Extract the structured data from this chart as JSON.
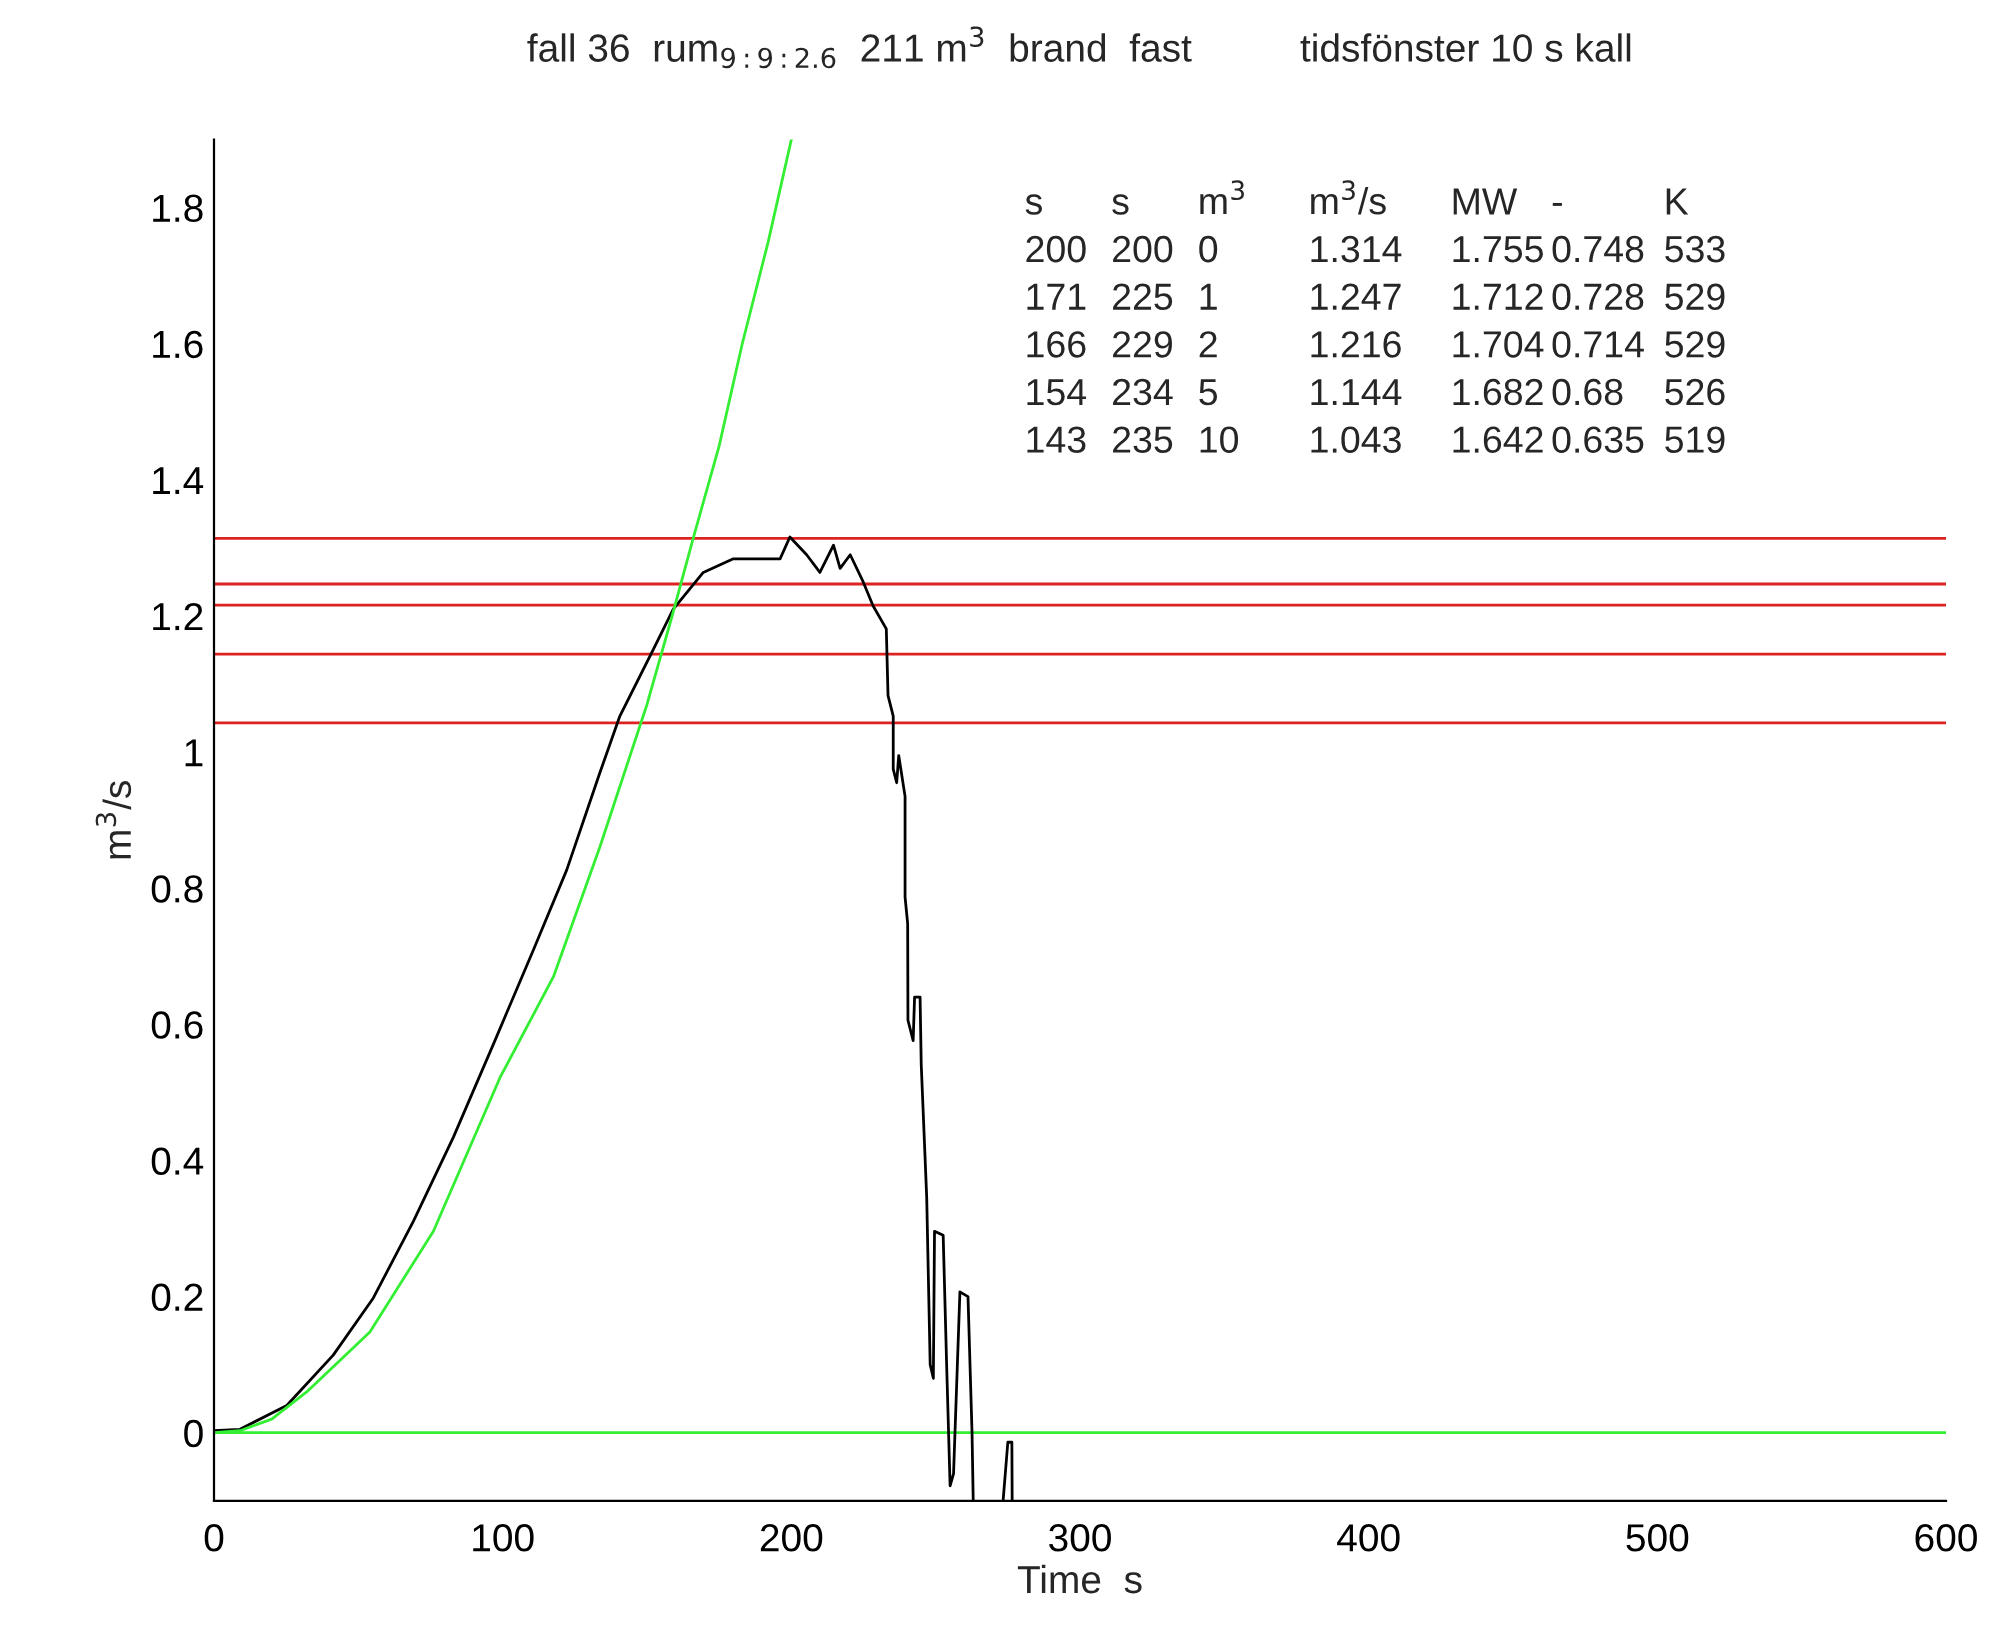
{
  "chart_data": {
    "type": "line",
    "title": "fall 36  rum$_{9:9:2.6}$  211 m$^{3}$  brand  fast          tidsfönster 10 s kall",
    "xlabel": "Time  s",
    "ylabel": "m$^{3}$/s",
    "xlim": [
      0,
      600
    ],
    "ylim": [
      -0.1,
      1.9
    ],
    "xticks": [
      0,
      100,
      200,
      300,
      400,
      500,
      600
    ],
    "yticks": [
      0,
      0.2,
      0.4,
      0.6,
      0.8,
      1,
      1.2,
      1.4,
      1.6,
      1.8
    ],
    "grid": false,
    "legend": false,
    "marker": "none",
    "line_style": "solid",
    "series": [
      {
        "color": "#000000",
        "x": [
          0,
          9,
          25.2,
          41.3,
          55.2,
          69.1,
          82.9,
          96.8,
          110.6,
          122.2,
          133.7,
          140.6,
          152.2,
          159.1,
          169.5,
          179.9,
          189.1,
          196.1,
          199.5,
          205.3,
          209.9,
          214.6,
          216.9,
          220.4,
          224.9,
          228.3,
          232.9,
          233.5,
          235.3,
          235.3,
          236.5,
          237.2,
          239.4,
          239.4,
          240.3,
          240.4,
          242.2,
          242.7,
          244.6,
          245.0,
          246.9,
          248.1,
          249.2,
          249.6,
          252.6,
          253.8,
          255.0,
          256.2,
          258.4,
          261.2,
          262.6,
          263.0,
          268,
          273.4,
          275.0,
          276.4,
          276.5
        ],
        "values": [
          0.003,
          0.005,
          0.04,
          0.114,
          0.198,
          0.311,
          0.434,
          0.571,
          0.709,
          0.827,
          0.97,
          1.053,
          1.151,
          1.21,
          1.264,
          1.284,
          1.284,
          1.284,
          1.316,
          1.29,
          1.264,
          1.304,
          1.27,
          1.29,
          1.25,
          1.215,
          1.181,
          1.083,
          1.053,
          0.975,
          0.955,
          0.995,
          0.935,
          0.787,
          0.748,
          0.606,
          0.576,
          0.64,
          0.64,
          0.541,
          0.345,
          0.1,
          0.08,
          0.296,
          0.29,
          0.1,
          -0.078,
          -0.06,
          0.207,
          0.2,
          0.0,
          -0.098,
          null,
          -0.098,
          -0.014,
          -0.014,
          -0.098
        ]
      },
      {
        "color": "#33ee33",
        "x": [
          0,
          9,
          20,
          32.1,
          54,
          76,
          99.1,
          117.6,
          133.7,
          150,
          158.7,
          166,
          175,
          183,
          192,
          200
        ],
        "values": [
          0,
          0.003,
          0.02,
          0.06,
          0.148,
          0.296,
          0.522,
          0.67,
          0.861,
          1.07,
          1.2,
          1.314,
          1.45,
          1.6,
          1.75,
          1.9
        ]
      }
    ],
    "ref_lines": [
      {
        "axis": "y",
        "value": 0,
        "color": "#33ee33"
      },
      {
        "axis": "y",
        "value": 1.314,
        "color": "#dd2222"
      },
      {
        "axis": "y",
        "value": 1.247,
        "color": "#dd2222"
      },
      {
        "axis": "y",
        "value": 1.216,
        "color": "#dd2222"
      },
      {
        "axis": "y",
        "value": 1.144,
        "color": "#dd2222"
      },
      {
        "axis": "y",
        "value": 1.043,
        "color": "#dd2222"
      }
    ],
    "annotations": [
      "s s m$^{3}$ m$^{3}$/s MW - K",
      "200 200 0 1.314 1.755 0.748 533",
      "171 225 1 1.247 1.712 0.728 529",
      "166 229 2 1.216 1.704 0.714 529",
      "154 234 5 1.144 1.682 0.68 526",
      "143 235 10 1.043 1.642 0.635 519"
    ]
  }
}
